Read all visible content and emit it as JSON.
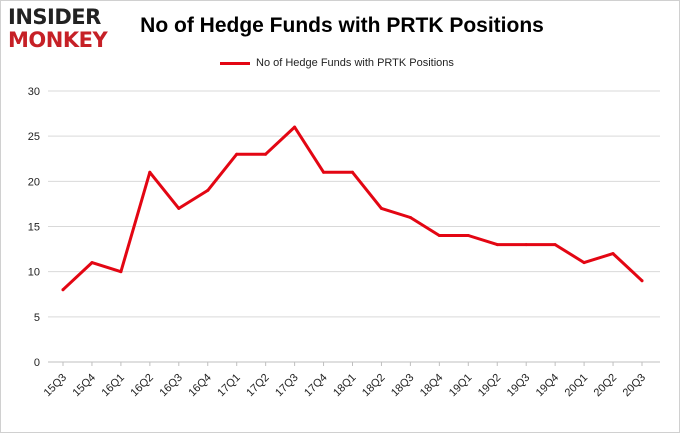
{
  "logo": {
    "line1": "INSIDER",
    "line2": "MONKEY"
  },
  "chart_data": {
    "type": "line",
    "title": "No of Hedge Funds with PRTK Positions",
    "xlabel": "",
    "ylabel": "",
    "categories": [
      "15Q3",
      "15Q4",
      "16Q1",
      "16Q2",
      "16Q3",
      "16Q4",
      "17Q1",
      "17Q2",
      "17Q3",
      "17Q4",
      "18Q1",
      "18Q2",
      "18Q3",
      "18Q4",
      "19Q1",
      "19Q2",
      "19Q3",
      "19Q4",
      "20Q1",
      "20Q2",
      "20Q3"
    ],
    "series": [
      {
        "name": "No of Hedge Funds with PRTK Positions",
        "values": [
          8,
          11,
          10,
          21,
          17,
          19,
          23,
          23,
          26,
          21,
          21,
          17,
          16,
          14,
          14,
          13,
          13,
          13,
          11,
          12,
          9
        ],
        "color": "#e30613"
      }
    ],
    "ylim": [
      0,
      30
    ],
    "yticks": [
      0,
      5,
      10,
      15,
      20,
      25,
      30
    ],
    "grid": true,
    "legend": "top"
  }
}
